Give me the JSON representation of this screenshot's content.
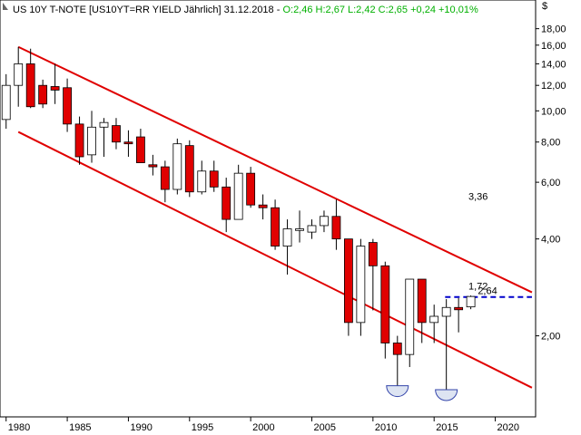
{
  "chart_data": {
    "type": "candlestick",
    "title": "US 10Y T-NOTE [US10YT=RR YIELD Jährlich] 31.12.2018 -",
    "quote": "O:2,46 H:2,67 L:2,42 C:2,65 +0,24 +10,01%",
    "quote_color": "#00b000",
    "currency": "$",
    "log_scale": true,
    "up_color": "#ffffff",
    "down_color": "#e00000",
    "x": [
      1980,
      1981,
      1982,
      1983,
      1984,
      1985,
      1986,
      1987,
      1988,
      1989,
      1990,
      1991,
      1992,
      1993,
      1994,
      1995,
      1996,
      1997,
      1998,
      1999,
      2000,
      2001,
      2002,
      2003,
      2004,
      2005,
      2006,
      2007,
      2008,
      2009,
      2010,
      2011,
      2012,
      2013,
      2014,
      2015,
      2016,
      2017,
      2018
    ],
    "open": [
      9.4,
      12.0,
      14.0,
      12.0,
      11.9,
      11.8,
      9.1,
      7.3,
      8.9,
      9.0,
      8.0,
      8.3,
      6.8,
      6.7,
      5.7,
      7.8,
      5.6,
      6.5,
      5.8,
      4.6,
      6.4,
      5.1,
      5.0,
      3.8,
      4.25,
      4.2,
      4.4,
      4.7,
      4.0,
      2.2,
      3.9,
      3.3,
      1.9,
      1.75,
      3.0,
      2.2,
      2.3,
      2.45,
      2.46
    ],
    "high": [
      13.0,
      15.8,
      15.6,
      12.5,
      14.0,
      12.6,
      9.6,
      10.0,
      9.5,
      9.5,
      8.7,
      8.8,
      7.3,
      7.0,
      8.2,
      8.1,
      7.0,
      7.0,
      6.2,
      6.8,
      6.7,
      5.5,
      5.3,
      4.6,
      4.9,
      4.6,
      4.9,
      5.3,
      4.0,
      4.0,
      4.0,
      3.4,
      2.0,
      3.0,
      3.0,
      2.5,
      2.6,
      2.62,
      2.67
    ],
    "low": [
      8.8,
      10.3,
      10.2,
      10.2,
      10.5,
      8.6,
      6.8,
      6.9,
      7.2,
      7.6,
      7.2,
      6.9,
      6.3,
      5.2,
      5.5,
      5.4,
      5.5,
      5.6,
      4.2,
      4.6,
      5.0,
      4.6,
      3.7,
      3.1,
      3.9,
      4.0,
      4.2,
      3.7,
      2.0,
      2.0,
      2.4,
      1.7,
      1.4,
      1.6,
      1.9,
      1.9,
      1.36,
      2.05,
      2.42
    ],
    "close": [
      12.0,
      14.0,
      10.3,
      10.5,
      11.6,
      9.1,
      7.2,
      8.9,
      9.2,
      8.0,
      7.9,
      6.9,
      6.7,
      5.7,
      7.9,
      5.6,
      6.5,
      5.8,
      4.6,
      6.4,
      5.1,
      5.0,
      3.8,
      4.3,
      4.3,
      4.4,
      4.7,
      4.0,
      2.2,
      3.8,
      3.3,
      1.9,
      1.75,
      3.0,
      2.2,
      2.3,
      2.45,
      2.41,
      2.65
    ],
    "xlim": [
      1979.5,
      2023.3
    ],
    "xticks": [
      1980,
      1985,
      1990,
      1995,
      2000,
      2005,
      2010,
      2015,
      2020
    ],
    "ylim": [
      1.12,
      22.1
    ],
    "yticks": [
      {
        "value": 2,
        "label": "2,00"
      },
      {
        "value": 4,
        "label": "4,00"
      },
      {
        "value": 6,
        "label": "6,00"
      },
      {
        "value": 8,
        "label": "8,00"
      },
      {
        "value": 10,
        "label": "10,00"
      },
      {
        "value": 12,
        "label": "12,00"
      },
      {
        "value": 14,
        "label": "14,00"
      },
      {
        "value": 16,
        "label": "16,00"
      },
      {
        "value": 18,
        "label": "18,00"
      }
    ],
    "trend_lines": [
      {
        "x": [
          1981,
          2023
        ],
        "y": [
          15.8,
          2.73
        ],
        "color": "#e00000",
        "label": "3,36"
      },
      {
        "x": [
          1981,
          2023
        ],
        "y": [
          8.6,
          1.38
        ],
        "color": "#e00000",
        "label": "1,72"
      }
    ],
    "level_line": {
      "x": [
        2015.9,
        2023
      ],
      "value": 2.64,
      "label": "2,64",
      "color": "#0000cc"
    }
  }
}
